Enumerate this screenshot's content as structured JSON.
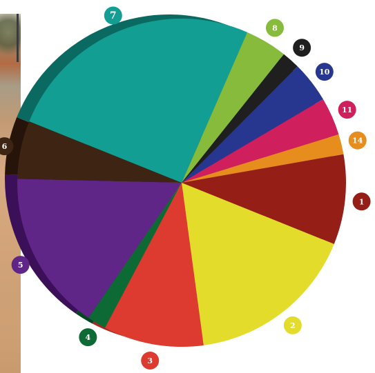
{
  "chart_data": {
    "type": "pie",
    "title": "",
    "start_angle_deg": -10,
    "direction": "clockwise",
    "legend": "none",
    "slices": [
      {
        "label": "1",
        "value": 9.0,
        "color": "#951f17",
        "shadow": "#6a140f"
      },
      {
        "label": "2",
        "value": 17.0,
        "color": "#e3dc2b",
        "shadow": "#a8a21c"
      },
      {
        "label": "3",
        "value": 10.0,
        "color": "#dd3b2f",
        "shadow": "#a52a20"
      },
      {
        "label": "4",
        "value": 1.9,
        "color": "#0d6a35",
        "shadow": "#064522"
      },
      {
        "label": "5",
        "value": 16.0,
        "color": "#5f2688",
        "shadow": "#3b1058"
      },
      {
        "label": "6",
        "value": 5.8,
        "color": "#3e2413",
        "shadow": "#26140a"
      },
      {
        "label": "7",
        "value": 25.8,
        "color": "#139e94",
        "shadow": "#0a6a61"
      },
      {
        "label": "8",
        "value": 4.2,
        "color": "#86bb3b",
        "shadow": "#5c8527"
      },
      {
        "label": "9",
        "value": 1.8,
        "color": "#1f1f1f",
        "shadow": "#0d0d0d"
      },
      {
        "label": "10",
        "value": 4.1,
        "color": "#27378f",
        "shadow": "#17225e"
      },
      {
        "label": "11",
        "value": 3.8,
        "color": "#cf1f5c",
        "shadow": "#8f143e"
      },
      {
        "label": "14",
        "value": 2.0,
        "color": "#e78d1e",
        "shadow": "#a76412"
      }
    ]
  }
}
